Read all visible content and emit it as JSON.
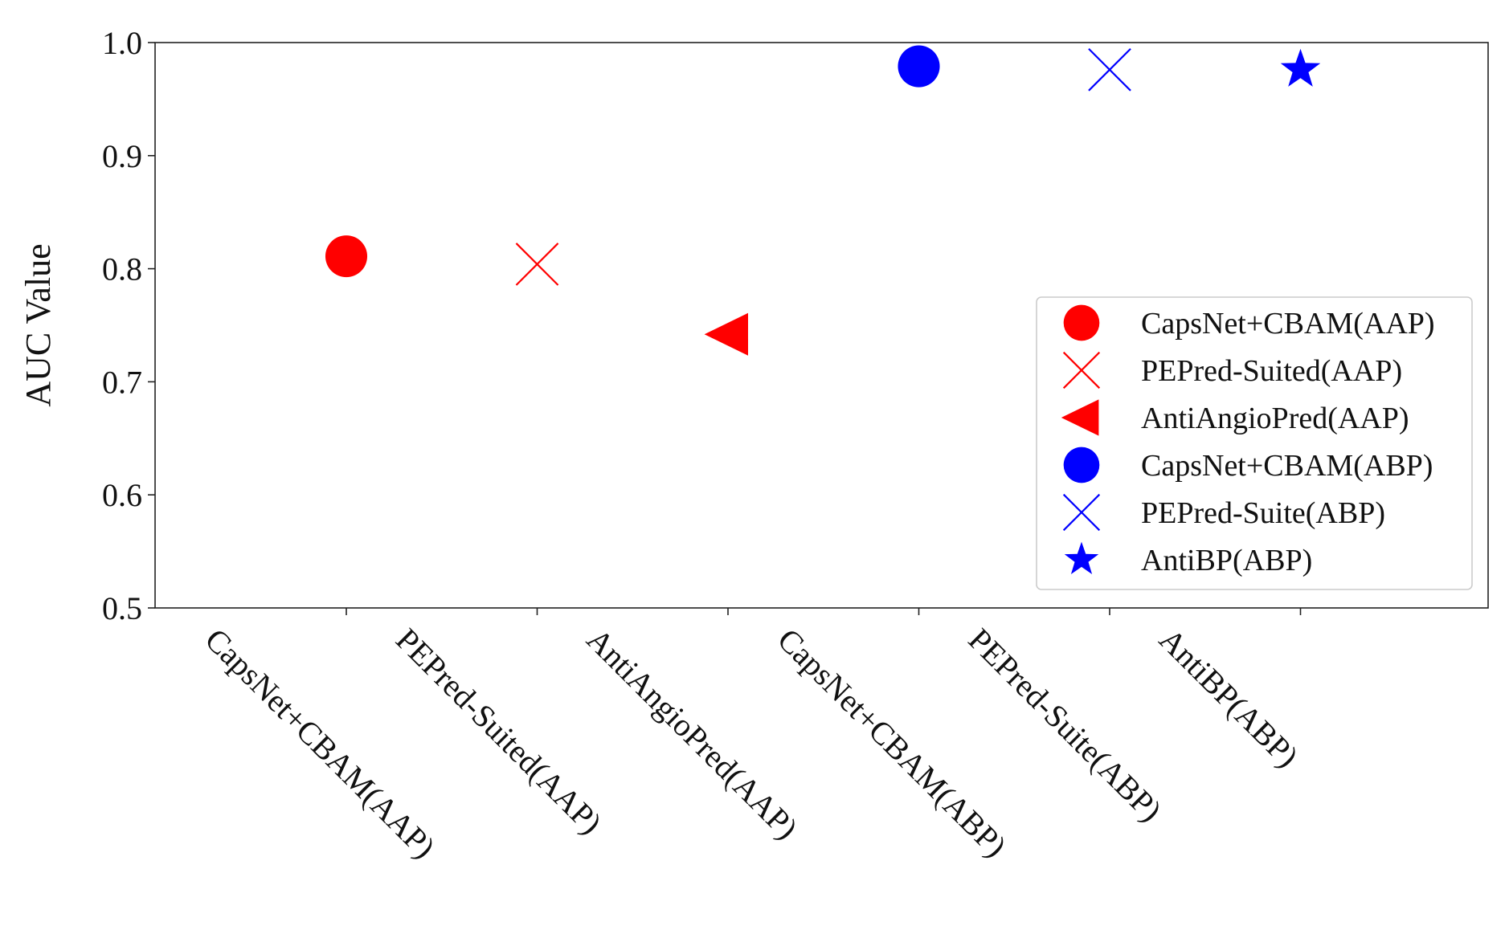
{
  "chart_data": {
    "type": "scatter",
    "title": "",
    "xlabel": "",
    "ylabel": "AUC Value",
    "ylim": [
      0.5,
      1.0
    ],
    "yticks": [
      0.5,
      0.6,
      0.7,
      0.8,
      0.9,
      1.0
    ],
    "ytick_labels": [
      "0.5",
      "0.6",
      "0.7",
      "0.8",
      "0.9",
      "1.0"
    ],
    "grid": false,
    "legend_position": "right",
    "categories": [
      "CapsNet+CBAM(AAP)",
      "PEPred-Suited(AAP)",
      "AntiAngioPred(AAP)",
      "CapsNet+CBAM(ABP)",
      "PEPred-Suite(ABP)",
      "AntiBP(ABP)"
    ],
    "series": [
      {
        "name": "CapsNet+CBAM(AAP)",
        "legend_label": "CapsNet+CBAM(AAP)",
        "category_index": 0,
        "value": 0.811,
        "marker": "circle",
        "color": "#ff0000"
      },
      {
        "name": "PEPred-Suited(AAP)",
        "legend_label": "PEPred-Suited(AAP)",
        "category_index": 1,
        "value": 0.804,
        "marker": "x",
        "color": "#ff0000"
      },
      {
        "name": "AntiAngioPred(AAP)",
        "legend_label": "AntiAngioPred(AAP)",
        "category_index": 2,
        "value": 0.742,
        "marker": "triangle-left",
        "color": "#ff0000"
      },
      {
        "name": "CapsNet+CBAM(ABP)",
        "legend_label": "CapsNet+CBAM(ABP)",
        "category_index": 3,
        "value": 0.979,
        "marker": "circle",
        "color": "#0000ff"
      },
      {
        "name": "PEPred-Suite(ABP)",
        "legend_label": "PEPred-Suite(ABP)",
        "category_index": 4,
        "value": 0.976,
        "marker": "x",
        "color": "#0000ff"
      },
      {
        "name": "AntiBP(ABP)",
        "legend_label": "AntiBP(ABP)",
        "category_index": 5,
        "value": 0.976,
        "marker": "star",
        "color": "#0000ff"
      }
    ]
  }
}
